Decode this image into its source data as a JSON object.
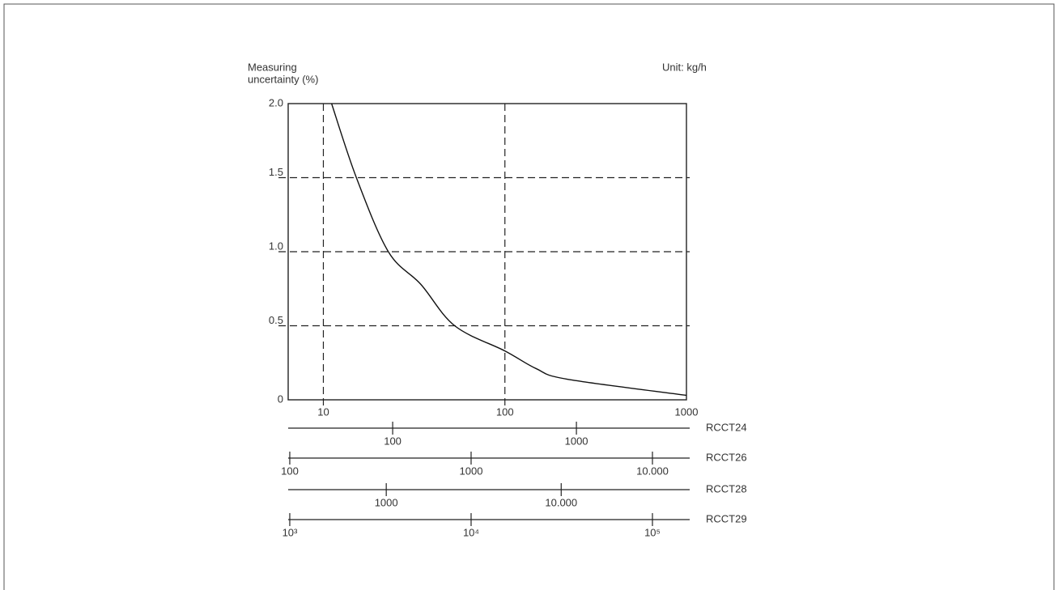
{
  "chart_data": {
    "type": "line",
    "y_label": [
      "Measuring",
      "uncertainty (%)"
    ],
    "annotation": "Unit: kg/h",
    "log_x": true,
    "grid": true,
    "xlim": [
      6.4,
      1000
    ],
    "xticks": [
      10,
      100,
      1000
    ],
    "ylim": [
      0,
      2
    ],
    "yticks": [
      0,
      0.5,
      {
        "value": 1,
        "label": "1.0"
      },
      1.5,
      {
        "value": 2,
        "label": "2.0"
      }
    ],
    "series": [
      {
        "color": "#111111",
        "x": [
          11.1,
          15.2,
          22.8,
          34.4,
          52.9,
          100,
          149,
          219,
          1000
        ],
        "values": [
          2.0,
          1.5,
          1.0,
          0.78,
          0.5,
          0.33,
          0.21,
          0.14,
          0.03
        ]
      }
    ],
    "scales": [
      {
        "name": "RCCT24",
        "xlim": [
          27,
          3970
        ],
        "ticks": [
          100,
          1000
        ]
      },
      {
        "name": "RCCT26",
        "xlim": [
          98,
          15400
        ],
        "ticks": [
          100,
          1000,
          {
            "value": 10000,
            "label": "10.000"
          }
        ]
      },
      {
        "name": "RCCT28",
        "xlim": [
          275,
          52000
        ],
        "ticks": [
          1000,
          {
            "value": 10000,
            "label": "10.000"
          }
        ]
      },
      {
        "name": "RCCT29",
        "xlim": [
          980,
          154000
        ],
        "ticks": [
          {
            "value": 1000,
            "label": "10³"
          },
          {
            "value": 10000,
            "label": "10⁴"
          },
          {
            "value": 100000,
            "label": "10⁵"
          }
        ]
      }
    ]
  }
}
